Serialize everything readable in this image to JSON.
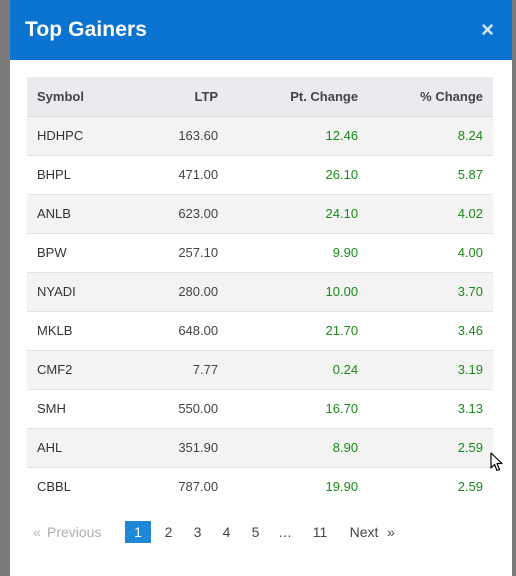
{
  "modal": {
    "title": "Top Gainers",
    "close_glyph": "×"
  },
  "table": {
    "headers": [
      "Symbol",
      "LTP",
      "Pt. Change",
      "% Change"
    ],
    "rows": [
      [
        "HDHPC",
        "163.60",
        "12.46",
        "8.24"
      ],
      [
        "BHPL",
        "471.00",
        "26.10",
        "5.87"
      ],
      [
        "ANLB",
        "623.00",
        "24.10",
        "4.02"
      ],
      [
        "BPW",
        "257.10",
        "9.90",
        "4.00"
      ],
      [
        "NYADI",
        "280.00",
        "10.00",
        "3.70"
      ],
      [
        "MKLB",
        "648.00",
        "21.70",
        "3.46"
      ],
      [
        "CMF2",
        "7.77",
        "0.24",
        "3.19"
      ],
      [
        "SMH",
        "550.00",
        "16.70",
        "3.13"
      ],
      [
        "AHL",
        "351.90",
        "8.90",
        "2.59"
      ],
      [
        "CBBL",
        "787.00",
        "19.90",
        "2.59"
      ]
    ]
  },
  "pagination": {
    "prev_arrow": "«",
    "prev_label": "Previous",
    "pages": [
      "1",
      "2",
      "3",
      "4",
      "5"
    ],
    "active_page": "1",
    "ellipsis": "…",
    "last_page": "11",
    "next_label": "Next",
    "next_arrow": "»"
  },
  "colors": {
    "header_bg": "#0b73d0",
    "positive": "#1a8a1a",
    "active_page_bg": "#1e87d6"
  }
}
